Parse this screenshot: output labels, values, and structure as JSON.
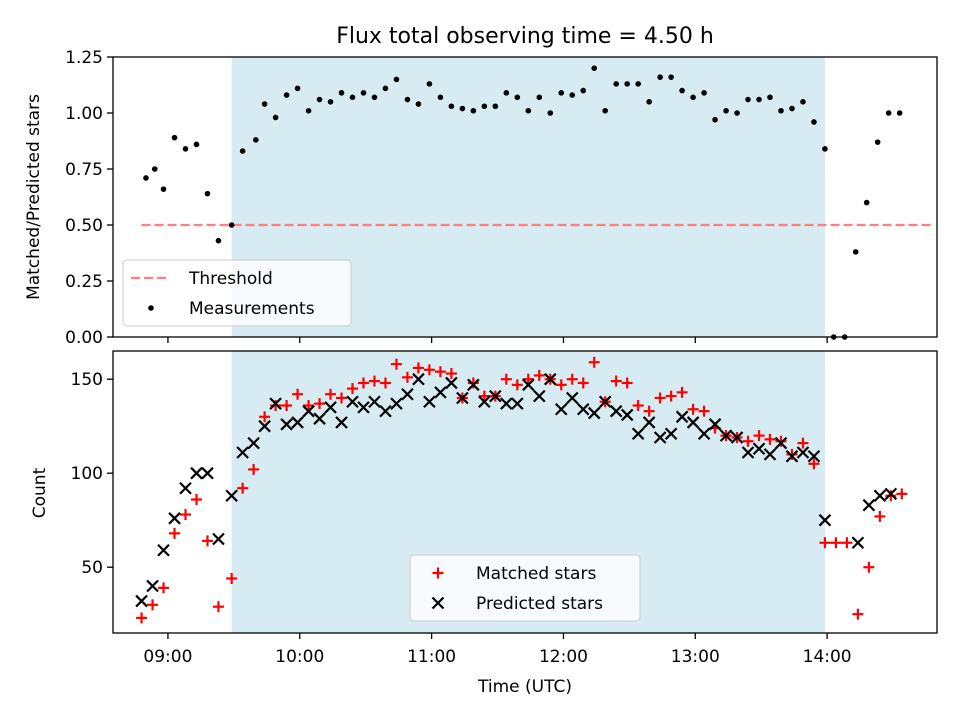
{
  "colors": {
    "band": "#add8e6",
    "threshold": "#ff7f7f",
    "measurement": "#000000",
    "matched": "#ff0000",
    "predicted": "#000000",
    "axis": "#000000"
  },
  "chart_data": [
    {
      "type": "scatter",
      "title": "Flux total observing time = 4.50 h",
      "xlabel": "",
      "ylabel": "Matched/Predicted stars",
      "xlim": [
        "08:35",
        "14:50"
      ],
      "ylim": [
        0,
        1.25
      ],
      "yticks": [
        "0.00",
        "0.25",
        "0.50",
        "0.75",
        "1.00",
        "1.25"
      ],
      "xticks": [
        "09:00",
        "10:00",
        "11:00",
        "12:00",
        "13:00",
        "14:00"
      ],
      "shaded_interval": [
        "09:29",
        "13:59"
      ],
      "legend": {
        "placement": "lower-left",
        "entries": [
          "Threshold",
          "Measurements"
        ]
      },
      "series": [
        {
          "name": "Threshold",
          "kind": "dashed-line",
          "x": [
            "08:48",
            "14:48"
          ],
          "y": [
            0.5,
            0.5
          ]
        },
        {
          "name": "Measurements",
          "kind": "points",
          "x": [
            "08:50",
            "08:54",
            "08:58",
            "09:03",
            "09:08",
            "09:13",
            "09:18",
            "09:23",
            "09:29",
            "09:34",
            "09:40",
            "09:44",
            "09:49",
            "09:54",
            "09:59",
            "10:04",
            "10:09",
            "10:14",
            "10:19",
            "10:24",
            "10:29",
            "10:34",
            "10:39",
            "10:44",
            "10:49",
            "10:54",
            "10:59",
            "11:04",
            "11:09",
            "11:14",
            "11:19",
            "11:24",
            "11:29",
            "11:34",
            "11:39",
            "11:44",
            "11:49",
            "11:54",
            "11:59",
            "12:04",
            "12:09",
            "12:14",
            "12:19",
            "12:24",
            "12:29",
            "12:34",
            "12:39",
            "12:44",
            "12:49",
            "12:54",
            "12:59",
            "13:04",
            "13:09",
            "13:14",
            "13:19",
            "13:24",
            "13:29",
            "13:34",
            "13:39",
            "13:44",
            "13:49",
            "13:54",
            "13:59",
            "14:03",
            "14:08",
            "14:13",
            "14:18",
            "14:23",
            "14:28",
            "14:33"
          ],
          "y": [
            0.71,
            0.75,
            0.66,
            0.89,
            0.84,
            0.86,
            0.64,
            0.43,
            0.5,
            0.83,
            0.88,
            1.04,
            0.98,
            1.08,
            1.11,
            1.01,
            1.06,
            1.05,
            1.09,
            1.07,
            1.09,
            1.07,
            1.11,
            1.15,
            1.06,
            1.04,
            1.13,
            1.07,
            1.03,
            1.02,
            1.01,
            1.03,
            1.03,
            1.09,
            1.07,
            1.01,
            1.07,
            1.0,
            1.09,
            1.08,
            1.1,
            1.2,
            1.01,
            1.13,
            1.13,
            1.13,
            1.05,
            1.16,
            1.16,
            1.1,
            1.07,
            1.09,
            0.97,
            1.01,
            1.0,
            1.06,
            1.06,
            1.07,
            1.01,
            1.02,
            1.05,
            0.96,
            0.84,
            0.0,
            0.0,
            0.38,
            0.6,
            0.87,
            1.0,
            1.0
          ]
        }
      ]
    },
    {
      "type": "scatter",
      "title": "",
      "xlabel": "Time (UTC)",
      "ylabel": "Count",
      "xlim": [
        "08:35",
        "14:50"
      ],
      "ylim": [
        15,
        165
      ],
      "yticks": [
        "50",
        "100",
        "150"
      ],
      "xticks": [
        "09:00",
        "10:00",
        "11:00",
        "12:00",
        "13:00",
        "14:00"
      ],
      "shaded_interval": [
        "09:29",
        "13:59"
      ],
      "legend": {
        "placement": "lower-center",
        "entries": [
          "Matched stars",
          "Predicted stars"
        ]
      },
      "series": [
        {
          "name": "Matched stars",
          "marker": "plus",
          "x": [
            "08:48",
            "08:53",
            "08:58",
            "09:03",
            "09:08",
            "09:13",
            "09:18",
            "09:23",
            "09:29",
            "09:34",
            "09:39",
            "09:44",
            "09:49",
            "09:54",
            "09:59",
            "10:04",
            "10:09",
            "10:14",
            "10:19",
            "10:24",
            "10:29",
            "10:34",
            "10:39",
            "10:44",
            "10:49",
            "10:54",
            "10:59",
            "11:04",
            "11:09",
            "11:14",
            "11:19",
            "11:24",
            "11:29",
            "11:34",
            "11:39",
            "11:44",
            "11:49",
            "11:54",
            "11:59",
            "12:04",
            "12:09",
            "12:14",
            "12:19",
            "12:24",
            "12:29",
            "12:34",
            "12:39",
            "12:44",
            "12:49",
            "12:54",
            "12:59",
            "13:04",
            "13:09",
            "13:14",
            "13:19",
            "13:24",
            "13:29",
            "13:34",
            "13:39",
            "13:44",
            "13:49",
            "13:54",
            "13:59",
            "14:04",
            "14:09",
            "14:14",
            "14:19",
            "14:24",
            "14:29",
            "14:34"
          ],
          "y": [
            23,
            30,
            39,
            68,
            78,
            86,
            64,
            29,
            44,
            92,
            102,
            130,
            136,
            136,
            142,
            136,
            137,
            142,
            140,
            145,
            148,
            149,
            148,
            158,
            151,
            156,
            155,
            154,
            153,
            140,
            148,
            141,
            141,
            150,
            147,
            150,
            152,
            150,
            147,
            150,
            148,
            159,
            138,
            149,
            148,
            136,
            133,
            140,
            141,
            143,
            134,
            133,
            124,
            120,
            119,
            117,
            120,
            118,
            117,
            110,
            116,
            105,
            63,
            63,
            63,
            25,
            50,
            77,
            88,
            89
          ]
        },
        {
          "name": "Predicted stars",
          "marker": "x",
          "x": [
            "08:48",
            "08:53",
            "08:58",
            "09:03",
            "09:08",
            "09:13",
            "09:18",
            "09:23",
            "09:29",
            "09:34",
            "09:39",
            "09:44",
            "09:49",
            "09:54",
            "09:59",
            "10:04",
            "10:09",
            "10:14",
            "10:19",
            "10:24",
            "10:29",
            "10:34",
            "10:39",
            "10:44",
            "10:49",
            "10:54",
            "10:59",
            "11:04",
            "11:09",
            "11:14",
            "11:19",
            "11:24",
            "11:29",
            "11:34",
            "11:39",
            "11:44",
            "11:49",
            "11:54",
            "11:59",
            "12:04",
            "12:09",
            "12:14",
            "12:19",
            "12:24",
            "12:29",
            "12:34",
            "12:39",
            "12:44",
            "12:49",
            "12:54",
            "12:59",
            "13:04",
            "13:09",
            "13:14",
            "13:19",
            "13:24",
            "13:29",
            "13:34",
            "13:39",
            "13:44",
            "13:49",
            "13:54",
            "13:59",
            "14:14",
            "14:19",
            "14:24",
            "14:29"
          ],
          "y": [
            32,
            40,
            59,
            76,
            92,
            100,
            100,
            65,
            88,
            111,
            116,
            125,
            137,
            126,
            127,
            133,
            129,
            135,
            127,
            138,
            135,
            138,
            133,
            137,
            142,
            150,
            138,
            143,
            148,
            140,
            147,
            138,
            141,
            137,
            137,
            147,
            141,
            150,
            134,
            140,
            134,
            132,
            138,
            133,
            131,
            121,
            127,
            119,
            121,
            130,
            127,
            121,
            126,
            120,
            119,
            111,
            113,
            110,
            116,
            109,
            111,
            109,
            75,
            63,
            83,
            88,
            89
          ]
        }
      ]
    }
  ]
}
